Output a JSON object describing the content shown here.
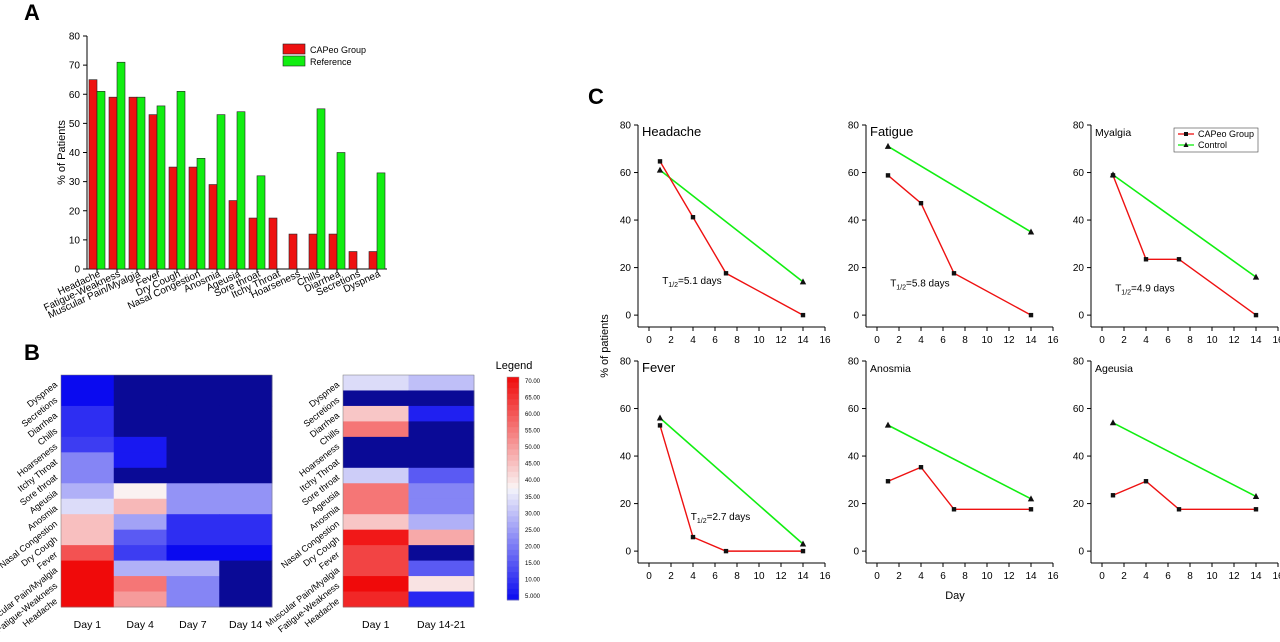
{
  "panel_labels": {
    "a": "A",
    "b": "B",
    "c": "C"
  },
  "colors": {
    "capeo": "#ee1111",
    "reference": "#11ee11",
    "marker": "#111111",
    "axis": "#000000"
  },
  "chart_data": [
    {
      "id": "A",
      "type": "bar",
      "ylabel": "% of Patients",
      "ylim": [
        0,
        80
      ],
      "yticks": [
        0,
        10,
        20,
        30,
        40,
        50,
        60,
        70,
        80
      ],
      "legend_position": "top-right",
      "categories": [
        "Headache",
        "Fatigue-Weakness",
        "Muscular Pain/Myalgia",
        "Fever",
        "Dry Cough",
        "Nasal Congestion",
        "Anosmia",
        "Ageusia",
        "Sore throat",
        "Itchy Throat",
        "Hoarseness",
        "Chills",
        "Diarrhea",
        "Secretions",
        "Dyspnea"
      ],
      "series": [
        {
          "name": "CAPeo Group",
          "values": [
            65,
            59,
            59,
            53,
            35,
            35,
            29,
            23.5,
            17.5,
            17.5,
            12,
            12,
            12,
            6,
            6
          ]
        },
        {
          "name": "Reference",
          "values": [
            61,
            71,
            59,
            56,
            61,
            38,
            53,
            54,
            32,
            null,
            null,
            55,
            40,
            null,
            33
          ]
        }
      ]
    },
    {
      "id": "B",
      "type": "heatmap",
      "rows": [
        "Dyspnea",
        "Secretions",
        "Diarrhea",
        "Chills",
        "Hoarseness",
        "Itchy Throat",
        "Sore throat",
        "Ageusia",
        "Anosmia",
        "Nasal Congestion",
        "Dry Cough",
        "Fever",
        "Muscular Pain/Myalgia",
        "Fatigue-Weakness",
        "Headache"
      ],
      "left": {
        "columns": [
          "Day 1",
          "Day 4",
          "Day 7",
          "Day 14"
        ],
        "values": [
          [
            5,
            0,
            0,
            0
          ],
          [
            5,
            0,
            0,
            0
          ],
          [
            10,
            0,
            0,
            0
          ],
          [
            10,
            0,
            0,
            0
          ],
          [
            12,
            7,
            0,
            0
          ],
          [
            22,
            7,
            0,
            0
          ],
          [
            22,
            0,
            0,
            0
          ],
          [
            28,
            38,
            24,
            24
          ],
          [
            34,
            46,
            24,
            24
          ],
          [
            45,
            26,
            10,
            10
          ],
          [
            45,
            16,
            10,
            10
          ],
          [
            60,
            12,
            5,
            5
          ],
          [
            70,
            28,
            28,
            0
          ],
          [
            70,
            55,
            22,
            0
          ],
          [
            70,
            50,
            22,
            0
          ]
        ]
      },
      "right": {
        "columns": [
          "Day 1",
          "Day 14-21"
        ],
        "values": [
          [
            34,
            30
          ],
          [
            3,
            3
          ],
          [
            44,
            8
          ],
          [
            55,
            3
          ],
          [
            3,
            3
          ],
          [
            3,
            3
          ],
          [
            32,
            16
          ],
          [
            55,
            22
          ],
          [
            55,
            22
          ],
          [
            44,
            28
          ],
          [
            68,
            48
          ],
          [
            62,
            3
          ],
          [
            62,
            16
          ],
          [
            70,
            40
          ],
          [
            66,
            9
          ]
        ]
      },
      "legend": {
        "title": "Legend",
        "ticks": [
          "70.00",
          "65.00",
          "60.00",
          "55.00",
          "50.00",
          "45.00",
          "40.00",
          "35.00",
          "30.00",
          "25.00",
          "20.00",
          "15.00",
          "10.00",
          "5.000"
        ],
        "range": [
          5,
          70
        ]
      }
    },
    {
      "id": "C",
      "type": "line",
      "xlabel": "Day",
      "ylabel": "% of patients",
      "xlim": [
        -1,
        16
      ],
      "ylim": [
        -5,
        80
      ],
      "xticks": [
        0,
        2,
        4,
        6,
        8,
        10,
        12,
        14,
        16
      ],
      "yticks": [
        0,
        20,
        40,
        60,
        80
      ],
      "legend_position": "top-right",
      "legend": [
        "CAPeo Group",
        "Control"
      ],
      "panels": [
        {
          "title": "Headache",
          "annotation": {
            "prefix": "T",
            "sub": "1/2",
            "suffix": "=5.1 days",
            "x": 1.2,
            "y": 13
          },
          "capeo": {
            "x": [
              1,
              4,
              7,
              14
            ],
            "y": [
              64.7,
              41.2,
              17.6,
              0
            ]
          },
          "control": {
            "x": [
              1,
              14
            ],
            "y": [
              61,
              14
            ]
          }
        },
        {
          "title": "Fatigue",
          "annotation": {
            "prefix": "T",
            "sub": "1/2",
            "suffix": "=5.8 days",
            "x": 1.2,
            "y": 12
          },
          "capeo": {
            "x": [
              1,
              4,
              7,
              14
            ],
            "y": [
              58.8,
              47.1,
              17.6,
              0
            ]
          },
          "control": {
            "x": [
              1,
              14
            ],
            "y": [
              71,
              35
            ]
          }
        },
        {
          "title": "Myalgia",
          "annotation": {
            "prefix": "T",
            "sub": "1/2",
            "suffix": "=4.9 days",
            "x": 1.2,
            "y": 10
          },
          "capeo": {
            "x": [
              1,
              4,
              7,
              14
            ],
            "y": [
              58.8,
              23.5,
              23.5,
              0
            ]
          },
          "control": {
            "x": [
              1,
              14
            ],
            "y": [
              59,
              16
            ]
          }
        },
        {
          "title": "Fever",
          "annotation": {
            "prefix": "T",
            "sub": "1/2",
            "suffix": "=2.7 days",
            "x": 3.8,
            "y": 13
          },
          "capeo": {
            "x": [
              1,
              4,
              7,
              14
            ],
            "y": [
              52.9,
              5.9,
              0,
              0
            ]
          },
          "control": {
            "x": [
              1,
              14
            ],
            "y": [
              56,
              3
            ]
          }
        },
        {
          "title": "Anosmia",
          "annotation": null,
          "capeo": {
            "x": [
              1,
              4,
              7,
              14
            ],
            "y": [
              29.4,
              35.3,
              17.6,
              17.6
            ]
          },
          "control": {
            "x": [
              1,
              14
            ],
            "y": [
              53,
              22
            ]
          }
        },
        {
          "title": "Ageusia",
          "annotation": null,
          "capeo": {
            "x": [
              1,
              4,
              7,
              14
            ],
            "y": [
              23.5,
              29.4,
              17.6,
              17.6
            ]
          },
          "control": {
            "x": [
              1,
              14
            ],
            "y": [
              54,
              23
            ]
          }
        }
      ]
    }
  ]
}
